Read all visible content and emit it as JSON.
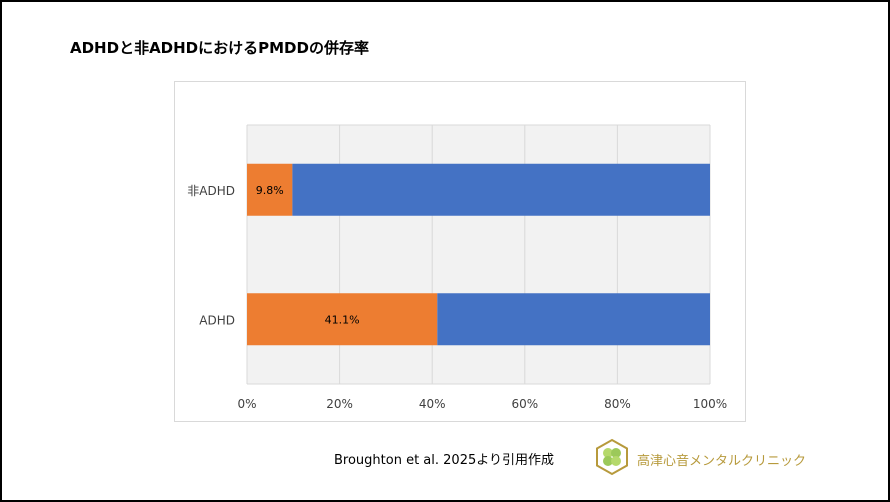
{
  "title": "ADHDと非ADHDにおけるPMDDの併存率",
  "citation": "Broughton et al. 2025より引用作成",
  "logo": {
    "text": "高津心音メンタルクリニック",
    "icon": "clover-hexagon-logo"
  },
  "chart_data": {
    "type": "bar",
    "orientation": "horizontal",
    "stacked": "percent",
    "title": "",
    "categories": [
      "非ADHD",
      "ADHD"
    ],
    "series": [
      {
        "values": [
          9.8,
          41.1
        ],
        "labels": [
          "9.8%",
          "41.1%"
        ],
        "color": "#ED7D31"
      },
      {
        "values": [
          90.2,
          58.9
        ],
        "color": "#4472C4"
      }
    ],
    "xlim": [
      0,
      100
    ],
    "xticks": [
      "0%",
      "20%",
      "40%",
      "60%",
      "80%",
      "100%"
    ],
    "grid": true,
    "plot_background": "#F2F2F2",
    "legend": "none"
  }
}
